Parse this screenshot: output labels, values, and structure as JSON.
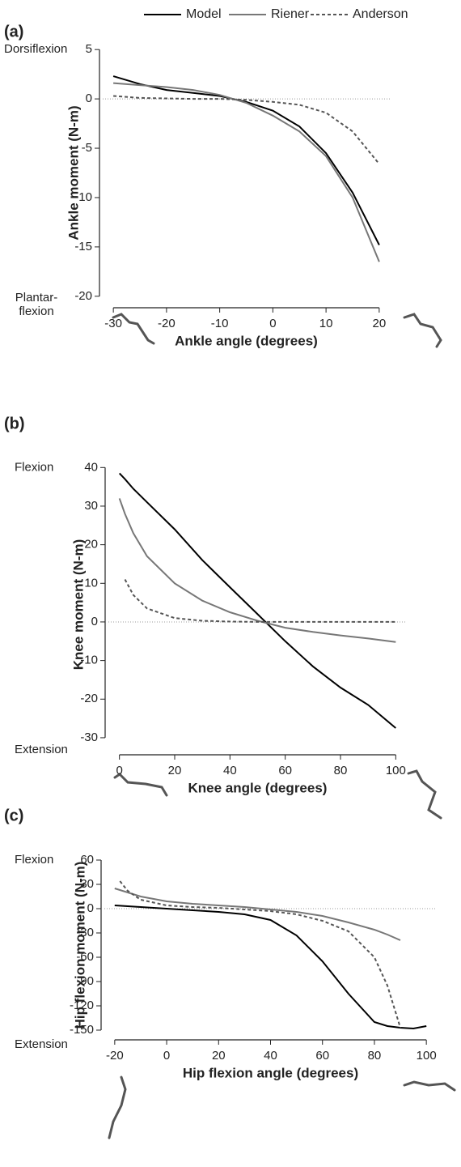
{
  "chart_data": [
    {
      "type": "line",
      "panel_label": "(a)",
      "x_label": "Ankle angle (degrees)",
      "y_label": "Ankle moment (N-m)",
      "annotation_top": [
        "Dorsiflexion"
      ],
      "annotation_bottom": [
        "Plantar-",
        "flexion"
      ],
      "x": [
        -30,
        -25,
        -20,
        -15,
        -10,
        -5,
        0,
        5,
        10,
        15,
        20
      ],
      "series": [
        {
          "name": "Model",
          "color": "#000000",
          "dash": false,
          "values": [
            2.3,
            1.5,
            0.9,
            0.6,
            0.3,
            -0.3,
            -1.2,
            -2.8,
            -5.5,
            -9.5,
            -14.8
          ]
        },
        {
          "name": "Riener",
          "color": "#777777",
          "dash": false,
          "values": [
            1.6,
            1.4,
            1.2,
            0.9,
            0.4,
            -0.4,
            -1.7,
            -3.3,
            -5.8,
            -10,
            -16.5
          ]
        },
        {
          "name": "Anderson",
          "color": "#555555",
          "dash": true,
          "values": [
            0.3,
            0.1,
            0.05,
            0,
            0,
            -0.1,
            -0.3,
            -0.6,
            -1.4,
            -3.3,
            -6.6
          ]
        }
      ],
      "xlim": [
        -32,
        22
      ],
      "ylim": [
        -21,
        6
      ],
      "xticks": [
        -30,
        -20,
        -10,
        0,
        10,
        20
      ],
      "yticks": [
        5,
        0,
        -5,
        -10,
        -15,
        -20
      ],
      "zero_line": true
    },
    {
      "type": "line",
      "panel_label": "(b)",
      "x_label": "Knee angle (degrees)",
      "y_label": "Knee moment (N-m)",
      "annotation_top": [
        "Flexion"
      ],
      "annotation_bottom": [
        "Extension"
      ],
      "x": [
        0,
        2,
        5,
        10,
        20,
        30,
        40,
        50,
        60,
        70,
        80,
        90,
        100
      ],
      "series": [
        {
          "color": "#000000",
          "dash": false,
          "values": [
            38.5,
            37,
            34.5,
            31,
            24,
            16,
            9,
            2,
            -5,
            -11.5,
            -17,
            -21.5,
            -27.5
          ]
        },
        {
          "color": "#777777",
          "dash": false,
          "values": [
            32,
            28,
            23,
            17,
            10,
            5.5,
            2.5,
            0.3,
            -1.5,
            -2.6,
            -3.5,
            -4.3,
            -5.2
          ]
        },
        {
          "color": "#555555",
          "dash": true,
          "values": [
            null,
            11,
            7,
            3.5,
            1,
            0.3,
            0.1,
            0,
            0,
            0,
            0,
            0,
            0
          ]
        }
      ],
      "xlim": [
        -4,
        104
      ],
      "ylim": [
        -34,
        43
      ],
      "xticks": [
        0,
        20,
        40,
        60,
        80,
        100
      ],
      "yticks": [
        40,
        30,
        20,
        10,
        0,
        -10,
        -20,
        -30
      ],
      "zero_line": true
    },
    {
      "type": "line",
      "panel_label": "(c)",
      "x_label": "Hip flexion angle (degrees)",
      "y_label": "Hip flexion moment (N-m)",
      "annotation_top": [
        "Flexion"
      ],
      "annotation_bottom": [
        "Extension"
      ],
      "x": [
        -20,
        -18,
        -15,
        -10,
        0,
        10,
        20,
        30,
        40,
        50,
        60,
        70,
        80,
        85,
        90,
        95,
        100
      ],
      "series": [
        {
          "color": "#000000",
          "dash": false,
          "values": [
            4,
            3.6,
            3,
            2,
            0,
            -2,
            -4,
            -7,
            -14,
            -33,
            -65,
            -105,
            -140,
            -145,
            -147,
            -148,
            -145
          ]
        },
        {
          "color": "#777777",
          "dash": false,
          "values": [
            25,
            23,
            20,
            15,
            9,
            6,
            4,
            2,
            -1,
            -4,
            -9,
            -17,
            -26,
            -32,
            -39,
            null,
            null
          ]
        },
        {
          "color": "#555555",
          "dash": true,
          "values": [
            null,
            34,
            22,
            11,
            4,
            2,
            1,
            -1,
            -3,
            -7,
            -15,
            -28,
            -60,
            -95,
            -147,
            null,
            null
          ]
        }
      ],
      "xlim": [
        -24,
        104
      ],
      "ylim": [
        -160,
        70
      ],
      "xticks": [
        -20,
        0,
        20,
        40,
        60,
        80,
        100
      ],
      "yticks": [
        60,
        30,
        0,
        -30,
        -60,
        -90,
        -120,
        -150
      ],
      "zero_line": true
    }
  ]
}
